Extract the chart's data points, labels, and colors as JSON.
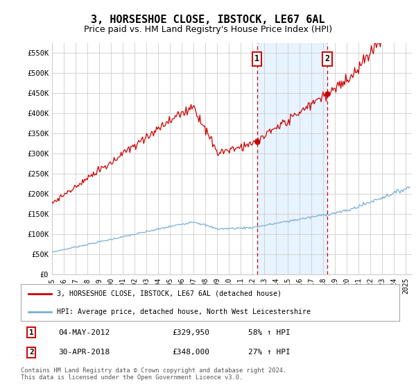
{
  "title": "3, HORSESHOE CLOSE, IBSTOCK, LE67 6AL",
  "subtitle": "Price paid vs. HM Land Registry's House Price Index (HPI)",
  "title_fontsize": 11,
  "subtitle_fontsize": 9,
  "ylabel_ticks": [
    "£0",
    "£50K",
    "£100K",
    "£150K",
    "£200K",
    "£250K",
    "£300K",
    "£350K",
    "£400K",
    "£450K",
    "£500K",
    "£550K"
  ],
  "ytick_values": [
    0,
    50000,
    100000,
    150000,
    200000,
    250000,
    300000,
    350000,
    400000,
    450000,
    500000,
    550000
  ],
  "ylim": [
    0,
    575000
  ],
  "xlim_start": 1995.0,
  "xlim_end": 2025.5,
  "background_color": "#ffffff",
  "grid_color": "#cccccc",
  "hpi_color": "#7bafd4",
  "price_color": "#cc0000",
  "vline_color": "#cc0000",
  "shade_color": "#ddeeff",
  "transaction1_x": 2012.37,
  "transaction1_y": 329950,
  "transaction1_label": "1",
  "transaction2_x": 2018.33,
  "transaction2_y": 348000,
  "transaction2_label": "2",
  "legend_line1": "3, HORSESHOE CLOSE, IBSTOCK, LE67 6AL (detached house)",
  "legend_line2": "HPI: Average price, detached house, North West Leicestershire",
  "table_row1": [
    "1",
    "04-MAY-2012",
    "£329,950",
    "58% ↑ HPI"
  ],
  "table_row2": [
    "2",
    "30-APR-2018",
    "£348,000",
    "27% ↑ HPI"
  ],
  "footer": "Contains HM Land Registry data © Crown copyright and database right 2024.\nThis data is licensed under the Open Government Licence v3.0.",
  "xtick_years": [
    1995,
    1996,
    1997,
    1998,
    1999,
    2000,
    2001,
    2002,
    2003,
    2004,
    2005,
    2006,
    2007,
    2008,
    2009,
    2010,
    2011,
    2012,
    2013,
    2014,
    2015,
    2016,
    2017,
    2018,
    2019,
    2020,
    2021,
    2022,
    2023,
    2024,
    2025
  ]
}
